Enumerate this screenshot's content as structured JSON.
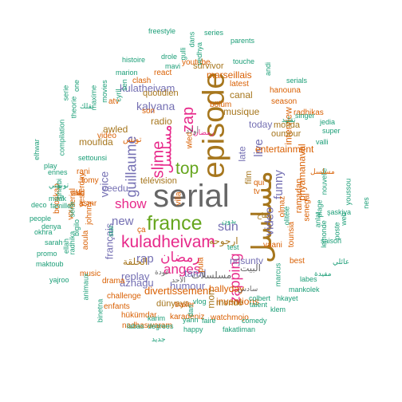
{
  "palette": {
    "teal": "#1b9e77",
    "orange": "#d95f02",
    "purple": "#7570b3",
    "magenta": "#e7298a",
    "green": "#66a61e",
    "brown": "#a6761d",
    "gray": "#666666",
    "gold": "#e6ab02"
  },
  "words": [
    {
      "text": "serial",
      "color": "gray"
    },
    {
      "text": "episode",
      "color": "brown"
    },
    {
      "text": "مسلسل",
      "color": "brown"
    },
    {
      "text": "france",
      "color": "green"
    },
    {
      "text": "kuladheivam",
      "color": "magenta"
    },
    {
      "text": "slime",
      "color": "magenta"
    },
    {
      "text": "guillaume",
      "color": "purple"
    },
    {
      "text": "zap",
      "color": "magenta"
    },
    {
      "text": "top",
      "color": "green"
    },
    {
      "text": "مسلسل",
      "color": "magenta"
    },
    {
      "text": "zapping",
      "color": "magenta"
    },
    {
      "text": "show",
      "color": "magenta"
    },
    {
      "text": "anges",
      "color": "magenta"
    },
    {
      "text": "رمضان",
      "color": "magenta"
    },
    {
      "text": "sun",
      "color": "purple"
    },
    {
      "text": "live",
      "color": "purple"
    },
    {
      "text": "video",
      "color": "purple"
    },
    {
      "text": "funny",
      "color": "purple"
    },
    {
      "text": "new",
      "color": "purple"
    },
    {
      "text": "rap",
      "color": "purple"
    },
    {
      "text": "voice",
      "color": "purple"
    },
    {
      "text": "français",
      "color": "purple"
    },
    {
      "text": "replay",
      "color": "purple"
    },
    {
      "text": "tamil",
      "color": "purple"
    },
    {
      "text": "humour",
      "color": "purple"
    },
    {
      "text": "azhagu",
      "color": "purple"
    },
    {
      "text": "kalyana",
      "color": "purple"
    },
    {
      "text": "kulatheivam",
      "color": "purple"
    },
    {
      "text": "today",
      "color": "purple"
    },
    {
      "text": "nrjsuntv",
      "color": "purple"
    },
    {
      "text": "divertissement",
      "color": "orange"
    },
    {
      "text": "hallyday",
      "color": "orange"
    },
    {
      "text": "inventions",
      "color": "orange"
    },
    {
      "text": "entertainment",
      "color": "orange"
    },
    {
      "text": "marseillais",
      "color": "orange"
    },
    {
      "text": "interview",
      "color": "orange"
    },
    {
      "text": "priyamanaval",
      "color": "orange"
    },
    {
      "text": "البيت",
      "color": "gray"
    },
    {
      "text": "مسلسلات",
      "color": "gray"
    },
    {
      "text": "ارجوحه",
      "color": "brown"
    },
    {
      "text": "canal",
      "color": "brown"
    },
    {
      "text": "musique",
      "color": "brown"
    },
    {
      "text": "radio",
      "color": "brown"
    },
    {
      "text": "awled",
      "color": "brown"
    },
    {
      "text": "moufida",
      "color": "brown"
    },
    {
      "text": "mofida",
      "color": "brown"
    },
    {
      "text": "oumour",
      "color": "brown"
    },
    {
      "text": "monde",
      "color": "brown"
    },
    {
      "text": "dünyaya",
      "color": "brown"
    },
    {
      "text": "télévision",
      "color": "brown"
    },
    {
      "text": "quotidien",
      "color": "brown"
    },
    {
      "text": "survivor",
      "color": "brown"
    },
    {
      "text": "film",
      "color": "brown"
    },
    {
      "text": "late",
      "color": "purple"
    },
    {
      "text": "mon",
      "color": "brown"
    },
    {
      "text": "veedu",
      "color": "purple"
    },
    {
      "text": "youtube",
      "color": "orange"
    },
    {
      "text": "clash",
      "color": "orange"
    },
    {
      "text": "react",
      "color": "orange"
    },
    {
      "text": "son",
      "color": "orange"
    },
    {
      "text": "atv",
      "color": "orange"
    },
    {
      "text": "vidéo",
      "color": "orange"
    },
    {
      "text": "tomy",
      "color": "orange"
    },
    {
      "text": "rani",
      "color": "orange"
    },
    {
      "text": "vald",
      "color": "orange"
    },
    {
      "text": "asmr",
      "color": "orange"
    },
    {
      "text": "bölüm",
      "color": "orange"
    },
    {
      "text": "latest",
      "color": "orange"
    },
    {
      "text": "season",
      "color": "orange"
    },
    {
      "text": "hanouna",
      "color": "orange"
    },
    {
      "text": "radhikas",
      "color": "orange"
    },
    {
      "text": "olmaz",
      "color": "orange"
    },
    {
      "text": "ramadan",
      "color": "orange"
    },
    {
      "text": "tounsia",
      "color": "orange"
    },
    {
      "text": "senegal",
      "color": "orange"
    },
    {
      "text": "vaani",
      "color": "orange"
    },
    {
      "text": "best",
      "color": "orange"
    },
    {
      "text": "drama",
      "color": "orange"
    },
    {
      "text": "challenge",
      "color": "orange"
    },
    {
      "text": "enfants",
      "color": "orange"
    },
    {
      "text": "trailer",
      "color": "orange"
    },
    {
      "text": "hükümdar",
      "color": "orange"
    },
    {
      "text": "nadhaswaram",
      "color": "orange"
    },
    {
      "text": "karadeniz",
      "color": "orange"
    },
    {
      "text": "watchmojo",
      "color": "orange"
    },
    {
      "text": "music",
      "color": "orange"
    },
    {
      "text": "ça",
      "color": "orange"
    },
    {
      "text": "qui",
      "color": "orange"
    },
    {
      "text": "tv",
      "color": "orange"
    },
    {
      "text": "pula",
      "color": "orange"
    },
    {
      "text": "villa",
      "color": "orange"
    },
    {
      "text": "wled",
      "color": "orange"
    },
    {
      "text": "aoula",
      "color": "orange"
    },
    {
      "text": "johnny",
      "color": "orange"
    },
    {
      "text": "booskap",
      "color": "orange"
    },
    {
      "text": "vous",
      "color": "orange"
    },
    {
      "text": "serial",
      "color": "orange"
    },
    {
      "text": "la",
      "color": "orange"
    },
    {
      "text": "yesterday",
      "color": "orange"
    },
    {
      "text": "freestyle",
      "color": "teal"
    },
    {
      "text": "histoire",
      "color": "teal"
    },
    {
      "text": "drole",
      "color": "teal"
    },
    {
      "text": "mavi",
      "color": "teal"
    },
    {
      "text": "marion",
      "color": "teal"
    },
    {
      "text": "series",
      "color": "teal"
    },
    {
      "text": "parents",
      "color": "teal"
    },
    {
      "text": "touche",
      "color": "teal"
    },
    {
      "text": "comedy",
      "color": "teal"
    },
    {
      "text": "serials",
      "color": "teal"
    },
    {
      "text": "singer",
      "color": "teal"
    },
    {
      "text": "super",
      "color": "teal"
    },
    {
      "text": "valli",
      "color": "teal"
    },
    {
      "text": "jedia",
      "color": "teal"
    },
    {
      "text": "web",
      "color": "teal"
    },
    {
      "text": "youssou",
      "color": "teal"
    },
    {
      "text": "nes",
      "color": "teal"
    },
    {
      "text": "şaskiya",
      "color": "teal"
    },
    {
      "text": "poste",
      "color": "teal"
    },
    {
      "text": "saison",
      "color": "teal"
    },
    {
      "text": "labes",
      "color": "teal"
    },
    {
      "text": "mankolek",
      "color": "teal"
    },
    {
      "text": "hkayet",
      "color": "teal"
    },
    {
      "text": "colbert",
      "color": "teal"
    },
    {
      "text": "talent",
      "color": "teal"
    },
    {
      "text": "klem",
      "color": "teal"
    },
    {
      "text": "fakatliman",
      "color": "teal"
    },
    {
      "text": "faire",
      "color": "teal"
    },
    {
      "text": "happy",
      "color": "teal"
    },
    {
      "text": "degrees",
      "color": "teal"
    },
    {
      "text": "labas",
      "color": "teal"
    },
    {
      "text": "karim",
      "color": "teal"
    },
    {
      "text": "yann",
      "color": "teal"
    },
    {
      "text": "binetna",
      "color": "teal"
    },
    {
      "text": "animaux",
      "color": "teal"
    },
    {
      "text": "yajroo",
      "color": "teal"
    },
    {
      "text": "maktoub",
      "color": "teal"
    },
    {
      "text": "promo",
      "color": "teal"
    },
    {
      "text": "okhra",
      "color": "teal"
    },
    {
      "text": "people",
      "color": "teal"
    },
    {
      "text": "famille",
      "color": "teal"
    },
    {
      "text": "maak",
      "color": "teal"
    },
    {
      "text": "play",
      "color": "teal"
    },
    {
      "text": "elhwar",
      "color": "teal"
    },
    {
      "text": "ennes",
      "color": "teal"
    },
    {
      "text": "gharbi",
      "color": "teal"
    },
    {
      "text": "compilation",
      "color": "teal"
    },
    {
      "text": "sarah",
      "color": "teal"
    },
    {
      "text": "denya",
      "color": "teal"
    },
    {
      "text": "ellah",
      "color": "teal"
    },
    {
      "text": "radhika",
      "color": "teal"
    },
    {
      "text": "bigilo",
      "color": "teal"
    },
    {
      "text": "settounsi",
      "color": "teal"
    },
    {
      "text": "one",
      "color": "teal"
    },
    {
      "text": "serie",
      "color": "teal"
    },
    {
      "text": "theorie",
      "color": "teal"
    },
    {
      "text": "maxime",
      "color": "teal"
    },
    {
      "text": "movies",
      "color": "teal"
    },
    {
      "text": "cyril",
      "color": "teal"
    },
    {
      "text": "gulli",
      "color": "teal"
    },
    {
      "text": "dans",
      "color": "teal"
    },
    {
      "text": "vedhya",
      "color": "teal"
    },
    {
      "text": "andi",
      "color": "teal"
    },
    {
      "text": "sen",
      "color": "teal"
    },
    {
      "text": "série",
      "color": "teal"
    },
    {
      "text": "plage",
      "color": "teal"
    },
    {
      "text": "nouvelle",
      "color": "teal"
    },
    {
      "text": "lemonde",
      "color": "teal"
    },
    {
      "text": "marcus",
      "color": "teal"
    },
    {
      "text": "anlat",
      "color": "teal"
    },
    {
      "text": "vlog",
      "color": "teal"
    },
    {
      "text": "dari",
      "color": "teal"
    },
    {
      "text": "star",
      "color": "teal"
    },
    {
      "text": "olitélé",
      "color": "teal"
    },
    {
      "text": "test",
      "color": "teal"
    },
    {
      "text": "deco",
      "color": "teal"
    },
    {
      "text": "نقلك",
      "color": "teal"
    },
    {
      "text": "تونسي",
      "color": "teal"
    },
    {
      "text": "تقليد",
      "color": "teal"
    },
    {
      "text": "عائلي",
      "color": "teal"
    },
    {
      "text": "مفيدة",
      "color": "teal"
    },
    {
      "text": "جديد",
      "color": "teal"
    },
    {
      "text": "بدون",
      "color": "teal"
    },
    {
      "text": "أولاد",
      "color": "gray"
    },
    {
      "text": "الأحد",
      "color": "gray"
    },
    {
      "text": "عودة",
      "color": "gray"
    },
    {
      "text": "سادس",
      "color": "gray"
    },
    {
      "text": "تفاح",
      "color": "brown"
    },
    {
      "text": "الحلقة",
      "color": "brown"
    },
    {
      "text": "مسلسل",
      "color": "orange"
    },
    {
      "text": "تونس",
      "color": "orange"
    },
    {
      "text": "رمضان",
      "color": "magenta"
    },
    {
      "text": "العيد",
      "color": "gray"
    }
  ]
}
